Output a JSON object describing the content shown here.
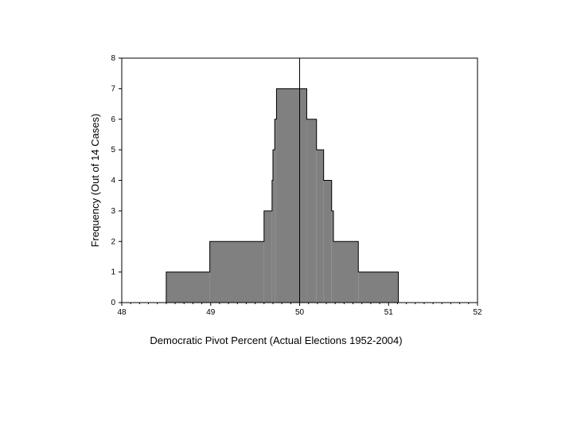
{
  "chart_data": {
    "type": "area",
    "title": "",
    "xlabel": "Democratic Pivot Percent (Actual Elections 1952-2004)",
    "ylabel": "Frequency (Out of 14 Cases)",
    "xlim": [
      48,
      52
    ],
    "ylim": [
      0,
      8
    ],
    "x_ticks": [
      "48",
      "49",
      "50",
      "51",
      "52"
    ],
    "y_ticks": [
      "0",
      "1",
      "2",
      "3",
      "4",
      "5",
      "6",
      "7",
      "8"
    ],
    "grid": false,
    "legend": "none",
    "fill_color": "#808080",
    "reference_line_x": 50,
    "steps": [
      {
        "x_start": 48.5,
        "x_end": 48.99,
        "y": 1
      },
      {
        "x_start": 48.99,
        "x_end": 49.6,
        "y": 2
      },
      {
        "x_start": 49.6,
        "x_end": 49.69,
        "y": 3
      },
      {
        "x_start": 49.69,
        "x_end": 49.7,
        "y": 4
      },
      {
        "x_start": 49.7,
        "x_end": 49.72,
        "y": 5
      },
      {
        "x_start": 49.72,
        "x_end": 49.74,
        "y": 6
      },
      {
        "x_start": 49.74,
        "x_end": 50.08,
        "y": 7
      },
      {
        "x_start": 50.08,
        "x_end": 50.19,
        "y": 6
      },
      {
        "x_start": 50.19,
        "x_end": 50.27,
        "y": 5
      },
      {
        "x_start": 50.27,
        "x_end": 50.36,
        "y": 4
      },
      {
        "x_start": 50.36,
        "x_end": 50.38,
        "y": 3
      },
      {
        "x_start": 50.38,
        "x_end": 50.66,
        "y": 2
      },
      {
        "x_start": 50.66,
        "x_end": 51.11,
        "y": 1
      }
    ]
  }
}
